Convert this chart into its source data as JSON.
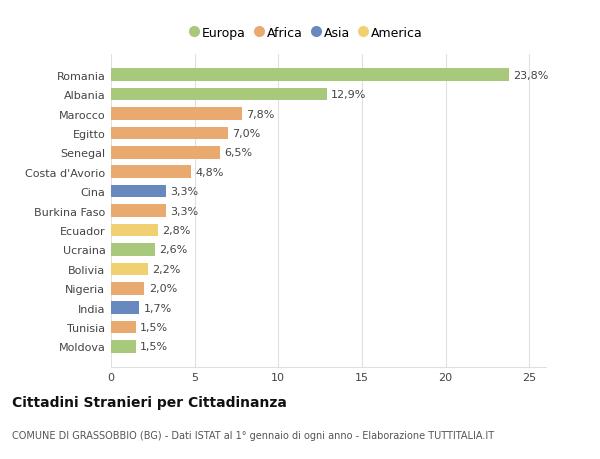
{
  "countries": [
    "Romania",
    "Albania",
    "Marocco",
    "Egitto",
    "Senegal",
    "Costa d'Avorio",
    "Cina",
    "Burkina Faso",
    "Ecuador",
    "Ucraina",
    "Bolivia",
    "Nigeria",
    "India",
    "Tunisia",
    "Moldova"
  ],
  "values": [
    23.8,
    12.9,
    7.8,
    7.0,
    6.5,
    4.8,
    3.3,
    3.3,
    2.8,
    2.6,
    2.2,
    2.0,
    1.7,
    1.5,
    1.5
  ],
  "labels": [
    "23,8%",
    "12,9%",
    "7,8%",
    "7,0%",
    "6,5%",
    "4,8%",
    "3,3%",
    "3,3%",
    "2,8%",
    "2,6%",
    "2,2%",
    "2,0%",
    "1,7%",
    "1,5%",
    "1,5%"
  ],
  "continent": [
    "Europa",
    "Europa",
    "Africa",
    "Africa",
    "Africa",
    "Africa",
    "Asia",
    "Africa",
    "America",
    "Europa",
    "America",
    "Africa",
    "Asia",
    "Africa",
    "Europa"
  ],
  "continent_colors": {
    "Europa": "#a8c87c",
    "Africa": "#e8aa6e",
    "Asia": "#6888c0",
    "America": "#f0d070"
  },
  "legend_order": [
    "Europa",
    "Africa",
    "Asia",
    "America"
  ],
  "title": "Cittadini Stranieri per Cittadinanza",
  "subtitle": "COMUNE DI GRASSOBBIO (BG) - Dati ISTAT al 1° gennaio di ogni anno - Elaborazione TUTTITALIA.IT",
  "xlim": [
    0,
    26
  ],
  "xticks": [
    0,
    5,
    10,
    15,
    20,
    25
  ],
  "background_color": "#ffffff",
  "grid_color": "#e0e0e0",
  "bar_height": 0.65,
  "label_fontsize": 8,
  "ytick_fontsize": 8,
  "xtick_fontsize": 8,
  "title_fontsize": 10,
  "subtitle_fontsize": 7
}
